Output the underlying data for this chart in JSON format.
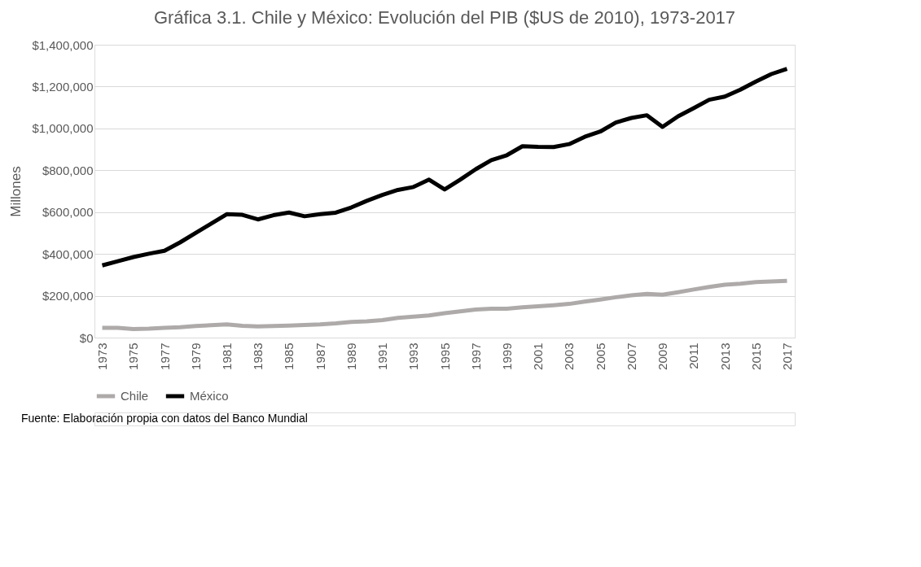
{
  "chart_data": {
    "type": "line",
    "title": "Gráfica 3.1. Chile y México: Evolución del PIB ($US de 2010), 1973-2017",
    "ylabel": "Millones",
    "categories": [
      "1973",
      null,
      "1975",
      null,
      "1977",
      null,
      "1979",
      null,
      "1981",
      null,
      "1983",
      null,
      "1985",
      null,
      "1987",
      null,
      "1989",
      null,
      "1991",
      null,
      "1993",
      null,
      "1995",
      null,
      "1997",
      null,
      "1999",
      null,
      "2001",
      null,
      "2003",
      null,
      "2005",
      null,
      "2007",
      null,
      "2009",
      null,
      "2011",
      null,
      "2013",
      null,
      "2015",
      null,
      "2017"
    ],
    "series": [
      {
        "name": "Chile",
        "color": "#aeaaaa",
        "values": [
          47000,
          47000,
          41000,
          43000,
          47000,
          50000,
          55000,
          59000,
          63000,
          56000,
          53000,
          55000,
          57000,
          60000,
          63000,
          68000,
          75000,
          78000,
          84000,
          94000,
          100000,
          106000,
          117000,
          125000,
          134000,
          138000,
          138000,
          145000,
          150000,
          155000,
          161000,
          172000,
          182000,
          193000,
          202000,
          209000,
          205000,
          217000,
          230000,
          242000,
          253000,
          258000,
          265000,
          268000,
          271000
        ]
      },
      {
        "name": "México",
        "color": "#000000",
        "values": [
          345000,
          365000,
          385000,
          401000,
          415000,
          455000,
          500000,
          545000,
          590000,
          587000,
          565000,
          585000,
          598000,
          580000,
          590000,
          597000,
          622000,
          654000,
          682000,
          706000,
          720000,
          755000,
          708000,
          755000,
          805000,
          848000,
          872000,
          915000,
          912000,
          911000,
          925000,
          960000,
          985000,
          1028000,
          1050000,
          1063000,
          1007000,
          1058000,
          1097000,
          1137000,
          1152000,
          1185000,
          1224000,
          1260000,
          1285000
        ]
      }
    ],
    "ylim": [
      0,
      1400000
    ],
    "yticks": [
      {
        "value": 0,
        "label": "$0"
      },
      {
        "value": 200000,
        "label": "$200,000"
      },
      {
        "value": 400000,
        "label": "$400,000"
      },
      {
        "value": 600000,
        "label": "$600,000"
      },
      {
        "value": 800000,
        "label": "$800,000"
      },
      {
        "value": 1000000,
        "label": "$1,000,000"
      },
      {
        "value": 1200000,
        "label": "$1,200,000"
      },
      {
        "value": 1400000,
        "label": "$1,400,000"
      }
    ],
    "grid": "y",
    "legend": "bottom",
    "marker": "none",
    "line_style": "solid",
    "annotations": [
      "Fuente: Elaboración propia con datos del Banco Mundial"
    ]
  }
}
